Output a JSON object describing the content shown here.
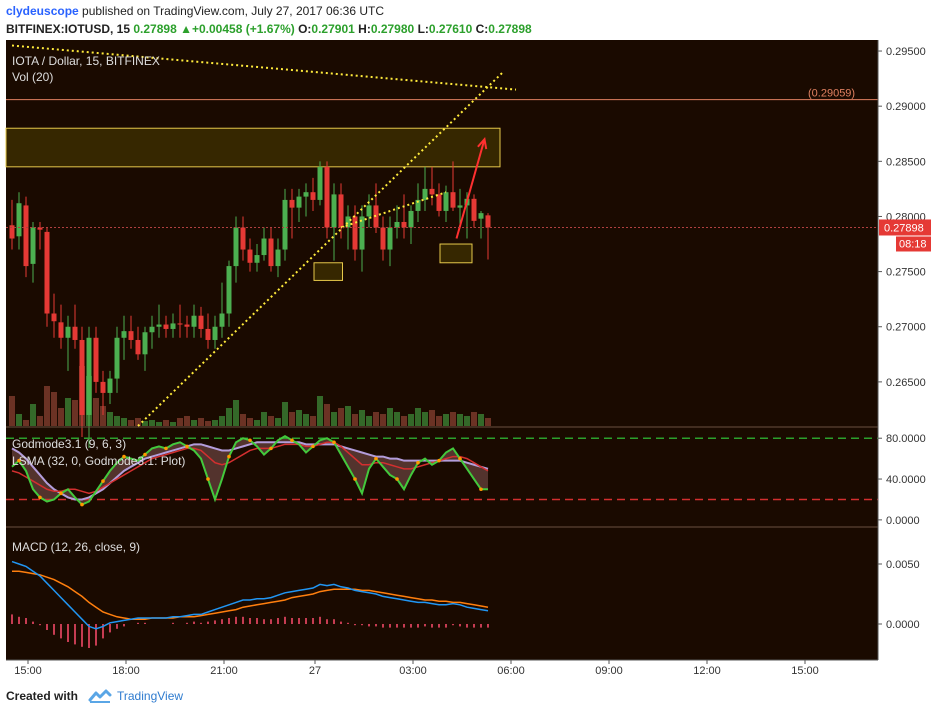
{
  "header": {
    "author": "clydeuscope",
    "published_text": " published on TradingView.com, July 27, 2017 06:36 UTC",
    "symbol_line": "BITFINEX:IOTUSD, 15",
    "last_price": "0.27898",
    "change": "+0.00458 (+1.67%)",
    "o_label": "O:",
    "o_value": "0.27901",
    "h_label": "H:",
    "h_value": "0.27980",
    "l_label": "L:",
    "l_value": "0.27610",
    "c_label": "C:",
    "c_value": "0.27898"
  },
  "footer": {
    "created_with": "Created with",
    "brand": "TradingView"
  },
  "colors": {
    "background": "#1a0a00",
    "bull": "#4caf50",
    "bear": "#e53935",
    "trendline": "#ffeb3b",
    "resistance_line": "#e08060",
    "zone_fill": "#4a3a00",
    "zone_border": "#e6c84a",
    "arrow": "#ff3030"
  },
  "chart_data": [
    {
      "type": "line",
      "title": "IOTA / Dollar, 15, BITFINEX",
      "volume_label": "Vol (20)",
      "y_ticks": [
        "0.29500",
        "0.29000",
        "0.28500",
        "0.28000",
        "0.27500",
        "0.27000",
        "0.26500"
      ],
      "ylim": [
        0.261,
        0.296
      ],
      "x_ticks": [
        "15:00",
        "18:00",
        "21:00",
        "27",
        "03:00",
        "06:00",
        "09:00",
        "12:00",
        "15:00"
      ],
      "price_label": "0.27898",
      "countdown_label": "08:18",
      "resistance_label": "(0.29059)",
      "resistance_value": 0.29059,
      "candles": [
        [
          0.2792,
          0.2815,
          0.277,
          0.278
        ],
        [
          0.2782,
          0.2822,
          0.277,
          0.2812
        ],
        [
          0.281,
          0.2818,
          0.2745,
          0.2755
        ],
        [
          0.2757,
          0.2795,
          0.274,
          0.279
        ],
        [
          0.279,
          0.2795,
          0.277,
          0.2788
        ],
        [
          0.2786,
          0.279,
          0.27,
          0.2712
        ],
        [
          0.2712,
          0.273,
          0.269,
          0.2705
        ],
        [
          0.2704,
          0.272,
          0.268,
          0.269
        ],
        [
          0.269,
          0.271,
          0.266,
          0.27
        ],
        [
          0.27,
          0.272,
          0.268,
          0.2688
        ],
        [
          0.2688,
          0.27,
          0.26,
          0.262
        ],
        [
          0.262,
          0.27,
          0.259,
          0.269
        ],
        [
          0.269,
          0.27,
          0.264,
          0.265
        ],
        [
          0.265,
          0.266,
          0.262,
          0.264
        ],
        [
          0.264,
          0.266,
          0.263,
          0.2653
        ],
        [
          0.2653,
          0.27,
          0.264,
          0.269
        ],
        [
          0.269,
          0.271,
          0.267,
          0.2696
        ],
        [
          0.2696,
          0.271,
          0.268,
          0.2688
        ],
        [
          0.2688,
          0.27,
          0.267,
          0.2675
        ],
        [
          0.2675,
          0.27,
          0.266,
          0.2695
        ],
        [
          0.2695,
          0.271,
          0.268,
          0.27
        ],
        [
          0.27,
          0.272,
          0.269,
          0.2702
        ],
        [
          0.2702,
          0.271,
          0.269,
          0.2698
        ],
        [
          0.2698,
          0.2712,
          0.269,
          0.2703
        ],
        [
          0.2703,
          0.272,
          0.269,
          0.2702
        ],
        [
          0.2702,
          0.271,
          0.269,
          0.27
        ],
        [
          0.27,
          0.272,
          0.269,
          0.271
        ],
        [
          0.271,
          0.2718,
          0.269,
          0.2698
        ],
        [
          0.2698,
          0.2712,
          0.268,
          0.2688
        ],
        [
          0.2688,
          0.271,
          0.268,
          0.27
        ],
        [
          0.27,
          0.274,
          0.269,
          0.2712
        ],
        [
          0.2712,
          0.276,
          0.27,
          0.2755
        ],
        [
          0.2755,
          0.28,
          0.274,
          0.279
        ],
        [
          0.279,
          0.28,
          0.276,
          0.277
        ],
        [
          0.277,
          0.278,
          0.275,
          0.2758
        ],
        [
          0.2758,
          0.2775,
          0.275,
          0.2765
        ],
        [
          0.2765,
          0.279,
          0.276,
          0.278
        ],
        [
          0.278,
          0.279,
          0.275,
          0.2755
        ],
        [
          0.2755,
          0.278,
          0.2745,
          0.277
        ],
        [
          0.277,
          0.2825,
          0.276,
          0.2815
        ],
        [
          0.2815,
          0.2825,
          0.278,
          0.2808
        ],
        [
          0.2808,
          0.2825,
          0.2795,
          0.2818
        ],
        [
          0.2818,
          0.283,
          0.28,
          0.2822
        ],
        [
          0.2822,
          0.2835,
          0.2805,
          0.2815
        ],
        [
          0.2815,
          0.285,
          0.281,
          0.2845
        ],
        [
          0.2845,
          0.285,
          0.278,
          0.279
        ],
        [
          0.279,
          0.283,
          0.276,
          0.282
        ],
        [
          0.282,
          0.283,
          0.278,
          0.279
        ],
        [
          0.279,
          0.281,
          0.277,
          0.28
        ],
        [
          0.28,
          0.281,
          0.276,
          0.277
        ],
        [
          0.277,
          0.281,
          0.275,
          0.28
        ],
        [
          0.28,
          0.282,
          0.279,
          0.281
        ],
        [
          0.281,
          0.283,
          0.2785,
          0.279
        ],
        [
          0.279,
          0.28,
          0.276,
          0.277
        ],
        [
          0.277,
          0.28,
          0.2755,
          0.279
        ],
        [
          0.279,
          0.281,
          0.278,
          0.2795
        ],
        [
          0.2795,
          0.282,
          0.278,
          0.279
        ],
        [
          0.279,
          0.281,
          0.2775,
          0.2805
        ],
        [
          0.2805,
          0.283,
          0.2795,
          0.2815
        ],
        [
          0.2815,
          0.2845,
          0.2805,
          0.2825
        ],
        [
          0.2825,
          0.2845,
          0.281,
          0.282
        ],
        [
          0.282,
          0.283,
          0.28,
          0.2805
        ],
        [
          0.2805,
          0.2828,
          0.2795,
          0.2822
        ],
        [
          0.2822,
          0.285,
          0.2805,
          0.2808
        ],
        [
          0.2808,
          0.2825,
          0.279,
          0.281
        ],
        [
          0.281,
          0.2822,
          0.278,
          0.2816
        ],
        [
          0.2816,
          0.282,
          0.279,
          0.2796
        ],
        [
          0.2798,
          0.2805,
          0.278,
          0.2803
        ],
        [
          0.2801,
          0.2803,
          0.2761,
          0.279
        ]
      ],
      "volumes": [
        30,
        12,
        6,
        22,
        10,
        40,
        34,
        18,
        28,
        26,
        60,
        50,
        28,
        20,
        14,
        10,
        8,
        6,
        8,
        5,
        6,
        4,
        6,
        4,
        8,
        10,
        6,
        8,
        5,
        6,
        10,
        18,
        26,
        12,
        8,
        6,
        14,
        10,
        8,
        24,
        14,
        16,
        12,
        10,
        30,
        22,
        14,
        18,
        20,
        12,
        16,
        10,
        14,
        12,
        18,
        14,
        10,
        12,
        18,
        14,
        16,
        10,
        12,
        14,
        12,
        10,
        14,
        12,
        8
      ],
      "volume_ylim": [
        0,
        60
      ],
      "trendlines": [
        {
          "from": [
            18,
            0.261
          ],
          "to": [
            70,
            0.293
          ]
        },
        {
          "from": [
            0,
            0.2955
          ],
          "to": [
            72,
            0.2915
          ]
        },
        {
          "from": [
            47,
            0.279
          ],
          "to": [
            62,
            0.2822
          ]
        }
      ],
      "zones": [
        {
          "x": [
            0,
            70
          ],
          "y": [
            0.2845,
            0.288
          ]
        },
        {
          "x": [
            44,
            47.5
          ],
          "y": [
            0.2742,
            0.2758
          ]
        },
        {
          "x": [
            62,
            66
          ],
          "y": [
            0.2758,
            0.2775
          ]
        }
      ],
      "arrow": {
        "from": [
          63.5,
          0.278
        ],
        "to": [
          67.5,
          0.287
        ]
      }
    },
    {
      "type": "line",
      "title": "Godmode3.1 (9, 6, 3)",
      "subtitle": "LSMA (32, 0, Godmode3.1: Plot)",
      "y_ticks": [
        "80.0000",
        "40.0000",
        "0.0000"
      ],
      "ylim": [
        -6,
        90
      ],
      "levels": [
        80,
        20
      ],
      "series": [
        {
          "values": [
            52,
            58,
            48,
            30,
            22,
            18,
            20,
            26,
            30,
            22,
            15,
            18,
            28,
            38,
            48,
            56,
            62,
            60,
            58,
            64,
            70,
            72,
            70,
            74,
            76,
            72,
            68,
            60,
            40,
            20,
            40,
            62,
            76,
            80,
            78,
            72,
            64,
            70,
            78,
            82,
            78,
            74,
            66,
            72,
            78,
            80,
            76,
            64,
            52,
            40,
            26,
            50,
            60,
            52,
            44,
            40,
            30,
            44,
            56,
            60,
            54,
            58,
            66,
            70,
            60,
            50,
            40,
            30,
            30
          ]
        },
        {
          "values": [
            48,
            46,
            42,
            38,
            34,
            30,
            28,
            28,
            30,
            30,
            28,
            26,
            28,
            32,
            36,
            40,
            44,
            48,
            52,
            56,
            60,
            62,
            64,
            66,
            68,
            70,
            70,
            68,
            62,
            56,
            54,
            56,
            60,
            64,
            68,
            70,
            70,
            70,
            72,
            74,
            74,
            74,
            72,
            72,
            74,
            76,
            76,
            72,
            66,
            60,
            54,
            54,
            56,
            56,
            54,
            52,
            50,
            50,
            52,
            54,
            56,
            58,
            60,
            62,
            62,
            60,
            56,
            52,
            48
          ]
        },
        {
          "values": [
            70,
            66,
            60,
            52,
            44,
            36,
            30,
            26,
            22,
            20,
            20,
            22,
            26,
            30,
            36,
            42,
            48,
            52,
            56,
            60,
            62,
            64,
            66,
            68,
            70,
            72,
            74,
            74,
            72,
            70,
            68,
            68,
            70,
            72,
            74,
            76,
            76,
            76,
            76,
            76,
            76,
            76,
            74,
            74,
            74,
            74,
            74,
            72,
            70,
            68,
            66,
            64,
            62,
            62,
            60,
            60,
            58,
            58,
            58,
            58,
            58,
            58,
            58,
            58,
            58,
            56,
            54,
            52,
            50
          ]
        }
      ]
    },
    {
      "type": "line",
      "title": "MACD (12, 26, close, 9)",
      "y_ticks": [
        "0.0050",
        "0.0000"
      ],
      "ylim": [
        -0.003,
        0.008
      ],
      "series": [
        {
          "values": [
            0.0052,
            0.005,
            0.0048,
            0.0044,
            0.004,
            0.0034,
            0.0028,
            0.0022,
            0.0016,
            0.001,
            0.0004,
            -0.0002,
            -0.0004,
            -0.0002,
            0.0001,
            0.0002,
            0.0003,
            0.0004,
            0.0005,
            0.0005,
            0.0005,
            0.0005,
            0.0005,
            0.0006,
            0.0006,
            0.0007,
            0.0008,
            0.0008,
            0.001,
            0.0012,
            0.0014,
            0.0016,
            0.0018,
            0.002,
            0.002,
            0.0021,
            0.0021,
            0.0022,
            0.0024,
            0.0026,
            0.0027,
            0.0028,
            0.0029,
            0.003,
            0.0033,
            0.0032,
            0.0033,
            0.0031,
            0.003,
            0.0028,
            0.0027,
            0.0026,
            0.0025,
            0.0023,
            0.0022,
            0.0021,
            0.002,
            0.0019,
            0.0018,
            0.0018,
            0.0017,
            0.0016,
            0.0016,
            0.0017,
            0.0016,
            0.0014,
            0.0013,
            0.0012,
            0.0011
          ]
        },
        {
          "values": [
            0.0044,
            0.0044,
            0.0043,
            0.0042,
            0.0041,
            0.0039,
            0.0037,
            0.0034,
            0.0031,
            0.0027,
            0.0023,
            0.0018,
            0.0014,
            0.001,
            0.0008,
            0.0006,
            0.0005,
            0.0004,
            0.0004,
            0.0004,
            0.0005,
            0.0005,
            0.0005,
            0.0005,
            0.0006,
            0.0006,
            0.0006,
            0.0007,
            0.0008,
            0.0009,
            0.001,
            0.0011,
            0.0012,
            0.0014,
            0.0015,
            0.0016,
            0.0017,
            0.0018,
            0.0019,
            0.002,
            0.0022,
            0.0023,
            0.0024,
            0.0025,
            0.0027,
            0.0028,
            0.0029,
            0.0029,
            0.0029,
            0.0029,
            0.0028,
            0.0028,
            0.0027,
            0.0026,
            0.0025,
            0.0024,
            0.0023,
            0.0022,
            0.0021,
            0.002,
            0.002,
            0.0019,
            0.0019,
            0.0018,
            0.0018,
            0.0017,
            0.0016,
            0.0015,
            0.0014
          ]
        },
        {
          "values": [
            0.0008,
            0.0006,
            0.0005,
            0.0002,
            -0.0001,
            -0.0005,
            -0.0009,
            -0.0012,
            -0.0015,
            -0.0017,
            -0.0019,
            -0.002,
            -0.0018,
            -0.0012,
            -0.0007,
            -0.0004,
            -0.0002,
            0.0,
            0.0001,
            0.0001,
            0.0,
            0.0,
            0.0,
            0.0001,
            0.0,
            0.0001,
            0.0002,
            0.0001,
            0.0002,
            0.0003,
            0.0004,
            0.0005,
            0.0006,
            0.0006,
            0.0005,
            0.0005,
            0.0004,
            0.0004,
            0.0005,
            0.0006,
            0.0005,
            0.0005,
            0.0005,
            0.0005,
            0.0006,
            0.0004,
            0.0004,
            0.0002,
            0.0001,
            -0.0001,
            -0.0001,
            -0.0002,
            -0.0002,
            -0.0003,
            -0.0003,
            -0.0003,
            -0.0003,
            -0.0003,
            -0.0003,
            -0.0002,
            -0.0003,
            -0.0003,
            -0.0003,
            -0.0001,
            -0.0002,
            -0.0003,
            -0.0003,
            -0.0003,
            -0.0003
          ]
        }
      ]
    }
  ]
}
